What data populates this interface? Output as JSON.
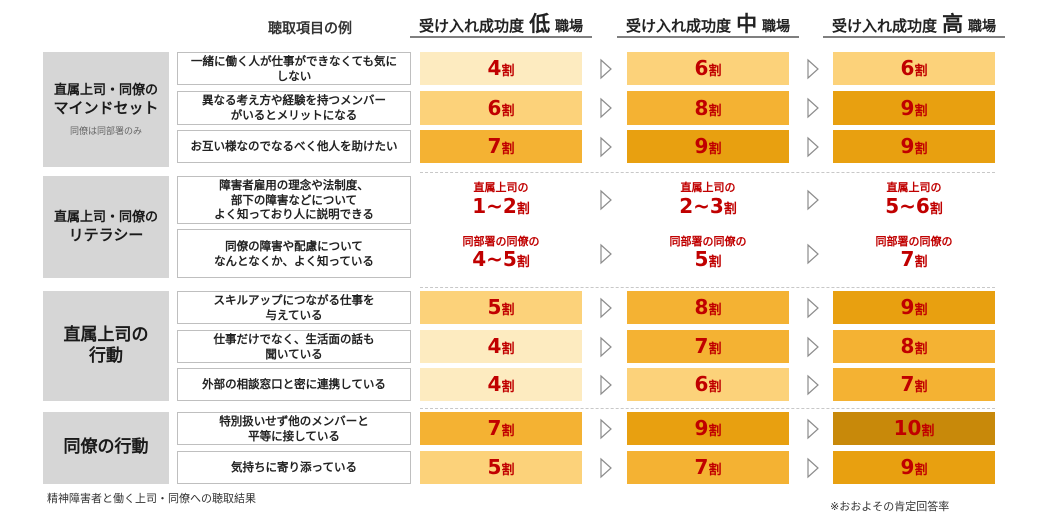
{
  "header": {
    "example_label": "聴取項目の例",
    "columns": [
      {
        "prefix": "受け入れ成功度",
        "level": "低",
        "suffix": "職場"
      },
      {
        "prefix": "受け入れ成功度",
        "level": "中",
        "suffix": "職場"
      },
      {
        "prefix": "受け入れ成功度",
        "level": "高",
        "suffix": "職場"
      }
    ]
  },
  "colors": {
    "low_fill": "#fdebc0",
    "mid_fill": "#fcd27a",
    "high_fill": "#f4b233",
    "highest_fill": "#e8a010",
    "top_fill": "#c8890a",
    "text_red": "#c00000",
    "group_bg": "#d6d6d6"
  },
  "groups": [
    {
      "title_lines": [
        "直属上司・同僚の",
        "マインドセット"
      ],
      "note": "同僚は同部署のみ",
      "rows": [
        {
          "item": "一緒に働く人が仕事ができなくても気に\nしない",
          "cells": [
            {
              "value": "4",
              "unit": "割"
            },
            {
              "value": "6",
              "unit": "割"
            },
            {
              "value": "6",
              "unit": "割"
            }
          ]
        },
        {
          "item": "異なる考え方や経験を持つメンバー\nがいるとメリットになる",
          "cells": [
            {
              "value": "6",
              "unit": "割"
            },
            {
              "value": "8",
              "unit": "割"
            },
            {
              "value": "9",
              "unit": "割"
            }
          ]
        },
        {
          "item": "お互い様なのでなるべく他人を助けたい",
          "cells": [
            {
              "value": "7",
              "unit": "割"
            },
            {
              "value": "9",
              "unit": "割"
            },
            {
              "value": "9",
              "unit": "割"
            }
          ]
        }
      ]
    },
    {
      "title_lines": [
        "直属上司・同僚の",
        "リテラシー"
      ],
      "note": "",
      "rows": [
        {
          "item": "障害者雇用の理念や法制度、\n部下の障害などについて\nよく知っており人に説明できる",
          "cells": [
            {
              "label": "直属上司の",
              "value": "1~2",
              "unit": "割"
            },
            {
              "label": "直属上司の",
              "value": "2~3",
              "unit": "割"
            },
            {
              "label": "直属上司の",
              "value": "5~6",
              "unit": "割"
            }
          ]
        },
        {
          "item": "同僚の障害や配慮について\nなんとなくか、よく知っている",
          "cells": [
            {
              "label": "同部署の同僚の",
              "value": "4~5",
              "unit": "割"
            },
            {
              "label": "同部署の同僚の",
              "value": "5",
              "unit": "割"
            },
            {
              "label": "同部署の同僚の",
              "value": "7",
              "unit": "割"
            }
          ]
        }
      ]
    },
    {
      "title_lines": [
        "直属上司の",
        "行動"
      ],
      "note": "",
      "rows": [
        {
          "item": "スキルアップにつながる仕事を\n与えている",
          "cells": [
            {
              "value": "5",
              "unit": "割"
            },
            {
              "value": "8",
              "unit": "割"
            },
            {
              "value": "9",
              "unit": "割"
            }
          ]
        },
        {
          "item": "仕事だけでなく、生活面の話も\n聞いている",
          "cells": [
            {
              "value": "4",
              "unit": "割"
            },
            {
              "value": "7",
              "unit": "割"
            },
            {
              "value": "8",
              "unit": "割"
            }
          ]
        },
        {
          "item": "外部の相談窓口と密に連携している",
          "cells": [
            {
              "value": "4",
              "unit": "割"
            },
            {
              "value": "6",
              "unit": "割"
            },
            {
              "value": "7",
              "unit": "割"
            }
          ]
        }
      ]
    },
    {
      "title_lines": [
        "同僚の行動"
      ],
      "note": "",
      "rows": [
        {
          "item": "特別扱いせず他のメンバーと\n平等に接している",
          "cells": [
            {
              "value": "7",
              "unit": "割"
            },
            {
              "value": "9",
              "unit": "割"
            },
            {
              "value": "10",
              "unit": "割"
            }
          ]
        },
        {
          "item": "気持ちに寄り添っている",
          "cells": [
            {
              "value": "5",
              "unit": "割"
            },
            {
              "value": "7",
              "unit": "割"
            },
            {
              "value": "9",
              "unit": "割"
            }
          ]
        }
      ]
    }
  ],
  "footer": {
    "source": "精神障害者と働く上司・同僚への聴取結果",
    "note": "※おおよその肯定回答率"
  }
}
